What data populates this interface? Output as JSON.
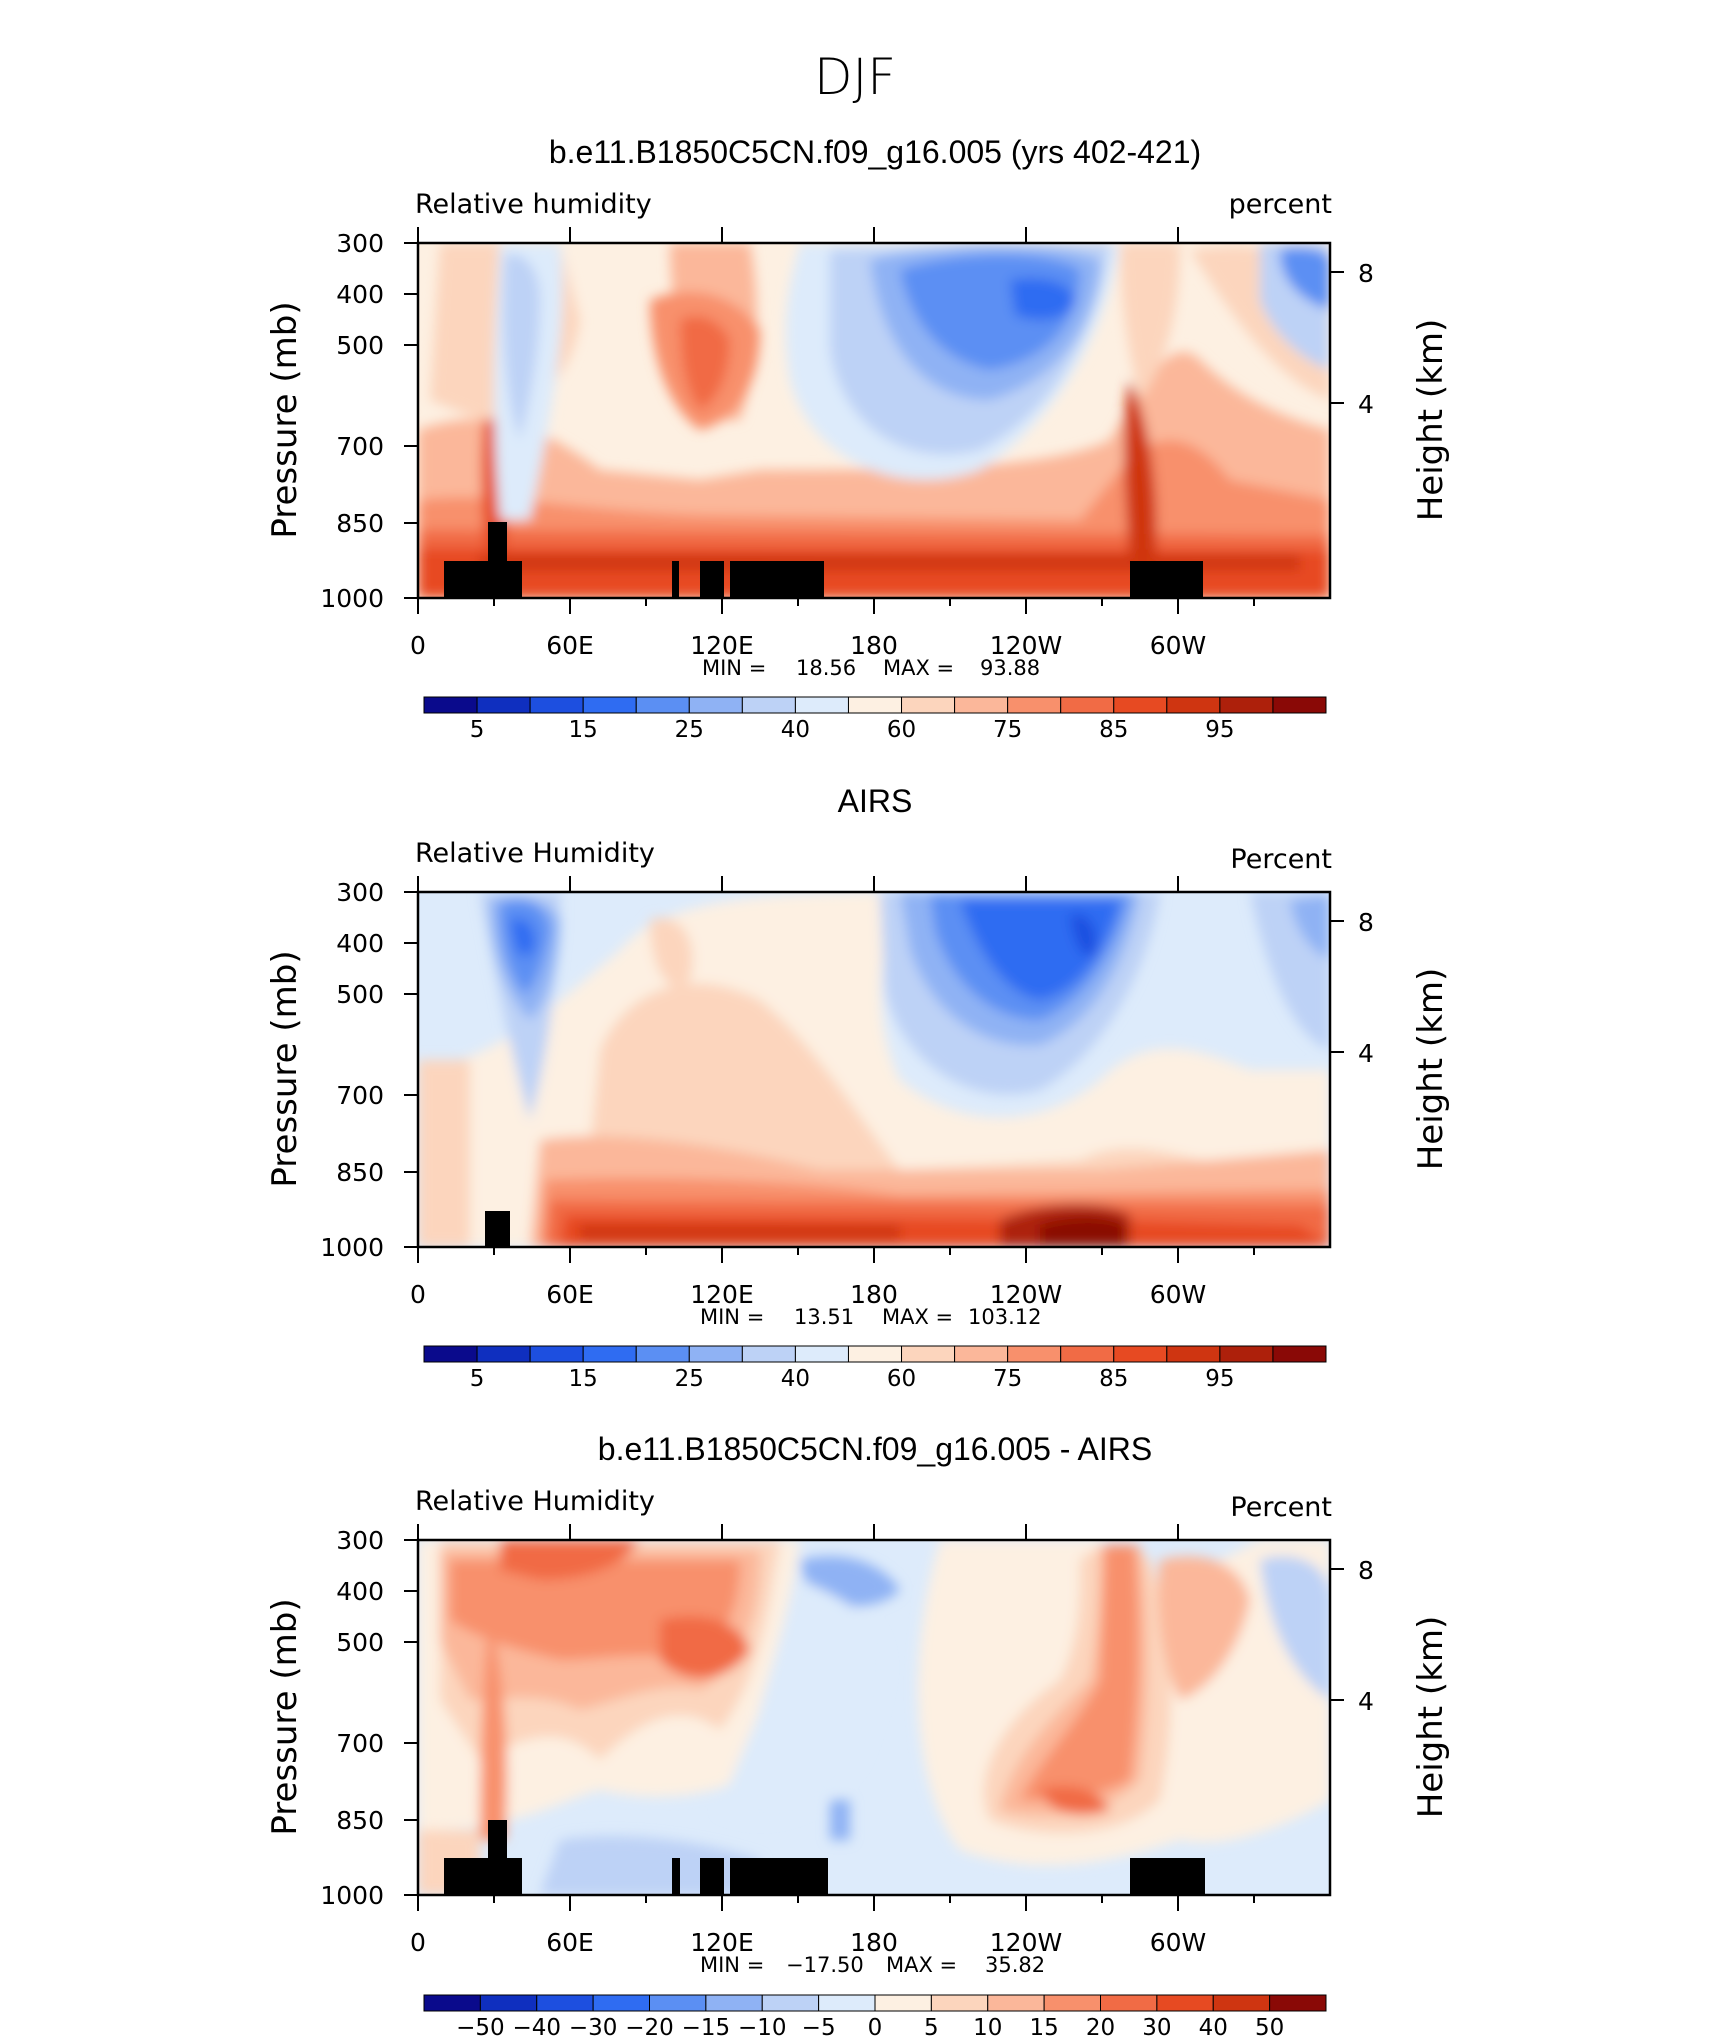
{
  "figure": {
    "title": "DJF"
  },
  "chart_data": [
    {
      "type": "heatmap",
      "title": "b.e11.B1850C5CN.f09_g16.005 (yrs 402-421)",
      "subtitle_left": "Relative humidity",
      "subtitle_right": "percent",
      "ylabel": "Pressure (mb)",
      "ylabel_right": "Height (km)",
      "x_ticks": [
        "0",
        "60E",
        "120E",
        "180",
        "120W",
        "60W"
      ],
      "y_ticks": [
        "300",
        "400",
        "500",
        "700",
        "850",
        "1000"
      ],
      "height_ticks": [
        "8",
        "4"
      ],
      "stats": {
        "min_label": "MIN =",
        "min": "18.56",
        "max_label": "MAX =",
        "max": "93.88"
      },
      "colorbar_labels": [
        "5",
        "15",
        "25",
        "40",
        "60",
        "75",
        "85",
        "95"
      ],
      "colorbar_colors": [
        "#0a0a8c",
        "#0f2fbf",
        "#1d4fe0",
        "#2f6cf2",
        "#5b8ff3",
        "#8fb2f4",
        "#bdd2f6",
        "#ddebfb",
        "#fdf0e2",
        "#fcd5bd",
        "#fbb79a",
        "#f8906c",
        "#f16b45",
        "#e74a22",
        "#cf3511",
        "#ad200b",
        "#8a0906"
      ],
      "colorbar_range": [
        0,
        100
      ],
      "grid": false
    },
    {
      "type": "heatmap",
      "title": "AIRS",
      "subtitle_left": "Relative Humidity",
      "subtitle_right": "Percent",
      "ylabel": "Pressure (mb)",
      "ylabel_right": "Height (km)",
      "x_ticks": [
        "0",
        "60E",
        "120E",
        "180",
        "120W",
        "60W"
      ],
      "y_ticks": [
        "300",
        "400",
        "500",
        "700",
        "850",
        "1000"
      ],
      "height_ticks": [
        "8",
        "4"
      ],
      "stats": {
        "min_label": "MIN =",
        "min": "13.51",
        "max_label": "MAX =",
        "max": "103.12"
      },
      "colorbar_labels": [
        "5",
        "15",
        "25",
        "40",
        "60",
        "75",
        "85",
        "95"
      ],
      "colorbar_colors": [
        "#0a0a8c",
        "#0f2fbf",
        "#1d4fe0",
        "#2f6cf2",
        "#5b8ff3",
        "#8fb2f4",
        "#bdd2f6",
        "#ddebfb",
        "#fdf0e2",
        "#fcd5bd",
        "#fbb79a",
        "#f8906c",
        "#f16b45",
        "#e74a22",
        "#cf3511",
        "#ad200b",
        "#8a0906"
      ],
      "colorbar_range": [
        0,
        100
      ],
      "grid": false
    },
    {
      "type": "heatmap",
      "title": "b.e11.B1850C5CN.f09_g16.005 - AIRS",
      "subtitle_left": "Relative Humidity",
      "subtitle_right": "Percent",
      "ylabel": "Pressure (mb)",
      "ylabel_right": "Height (km)",
      "x_ticks": [
        "0",
        "60E",
        "120E",
        "180",
        "120W",
        "60W"
      ],
      "y_ticks": [
        "300",
        "400",
        "500",
        "700",
        "850",
        "1000"
      ],
      "height_ticks": [
        "8",
        "4"
      ],
      "stats": {
        "min_label": "MIN =",
        "min": "−17.50",
        "max_label": "MAX =",
        "max": "35.82"
      },
      "colorbar_labels": [
        "−50",
        "−40",
        "−30",
        "−20",
        "−15",
        "−10",
        "−5",
        "0",
        "5",
        "10",
        "15",
        "20",
        "30",
        "40",
        "50"
      ],
      "colorbar_colors": [
        "#0a0a8c",
        "#0f2fbf",
        "#1d4fe0",
        "#2f6cf2",
        "#5b8ff3",
        "#8fb2f4",
        "#bdd2f6",
        "#ddebfb",
        "#fdf0e2",
        "#fcd5bd",
        "#fbb79a",
        "#f8906c",
        "#f16b45",
        "#e74a22",
        "#cf3511",
        "#8a0906"
      ],
      "colorbar_range": [
        -50,
        50
      ],
      "grid": false
    }
  ]
}
